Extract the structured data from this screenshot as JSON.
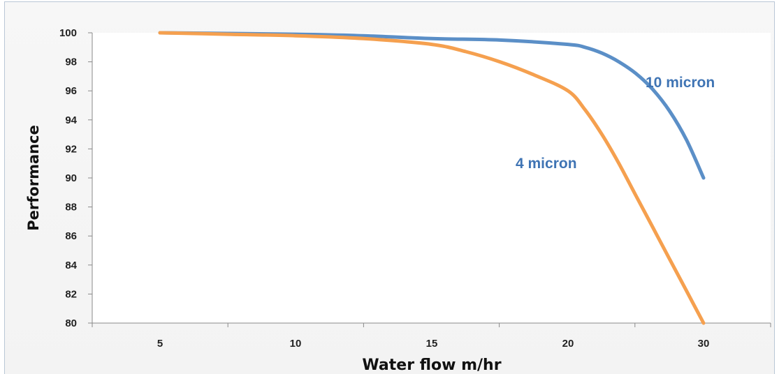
{
  "chart_data": {
    "type": "line",
    "title": "",
    "xlabel": "Water flow m/hr",
    "ylabel": "Performance",
    "x_categories": [
      "5",
      "10",
      "15",
      "20",
      "30"
    ],
    "ylim": [
      80,
      100
    ],
    "yticks": [
      "80",
      "82",
      "84",
      "86",
      "88",
      "90",
      "92",
      "94",
      "96",
      "98",
      "100"
    ],
    "grid": false,
    "series": [
      {
        "name": "10 micron",
        "color": "#5b8fc7",
        "x": [
          5,
          7.5,
          10,
          12.5,
          15,
          17.5,
          20,
          21.25,
          22.5,
          23.75,
          25,
          26.25,
          27.5,
          28.75,
          30
        ],
        "y": [
          100,
          99.95,
          99.9,
          99.8,
          99.6,
          99.5,
          99.2,
          99.0,
          98.6,
          98.0,
          97.2,
          96.1,
          94.6,
          92.6,
          90
        ]
      },
      {
        "name": "4 micron",
        "color": "#f5a04f",
        "x": [
          5,
          7.5,
          10,
          12.5,
          15,
          16.25,
          17.5,
          18.75,
          20,
          21.25,
          22.5,
          23.75,
          25,
          26.25,
          27.5,
          28.75,
          30
        ],
        "y": [
          100,
          99.9,
          99.8,
          99.6,
          99.2,
          98.7,
          98.0,
          97.1,
          96.0,
          94.7,
          93.0,
          91.0,
          88.8,
          86.6,
          84.4,
          82.2,
          80
        ]
      }
    ],
    "annotations": [
      {
        "text": "10 micron",
        "series": "10 micron"
      },
      {
        "text": "4 micron",
        "series": "4 micron"
      }
    ]
  }
}
